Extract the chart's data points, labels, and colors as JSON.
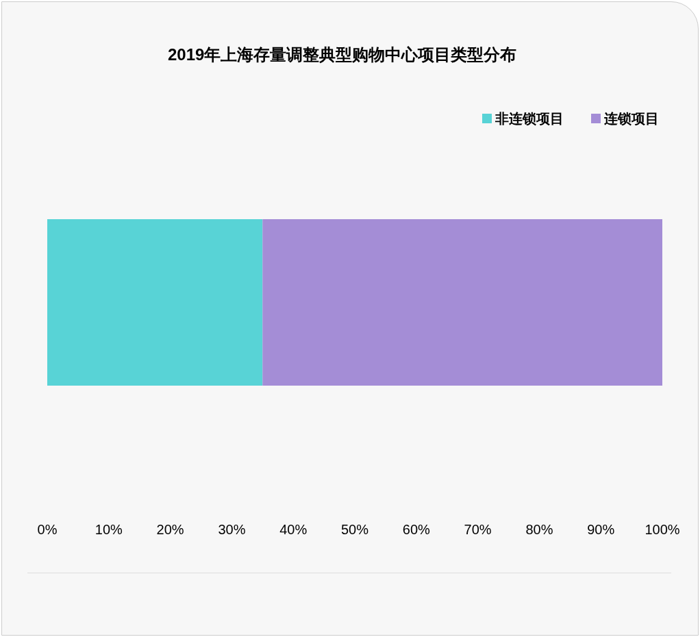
{
  "chart_data": {
    "type": "bar",
    "title": "2019年上海存量调整典型购物中心项目类型分布",
    "orientation": "horizontal",
    "stacked": true,
    "categories": [
      null
    ],
    "series": [
      {
        "name": "非连锁项目",
        "color": "#58d3d6",
        "values": [
          35
        ]
      },
      {
        "name": "连锁项目",
        "color": "#a48dd6",
        "values": [
          65
        ]
      }
    ],
    "xlim": [
      0,
      100
    ],
    "xticks": [
      {
        "value": 0,
        "label": "0%"
      },
      {
        "value": 10,
        "label": "10%"
      },
      {
        "value": 20,
        "label": "20%"
      },
      {
        "value": 30,
        "label": "30%"
      },
      {
        "value": 40,
        "label": "40%"
      },
      {
        "value": 50,
        "label": "50%"
      },
      {
        "value": 60,
        "label": "60%"
      },
      {
        "value": 70,
        "label": "70%"
      },
      {
        "value": 80,
        "label": "80%"
      },
      {
        "value": 90,
        "label": "90%"
      },
      {
        "value": 100,
        "label": "100%"
      }
    ],
    "grid": false,
    "legend": "top right"
  }
}
